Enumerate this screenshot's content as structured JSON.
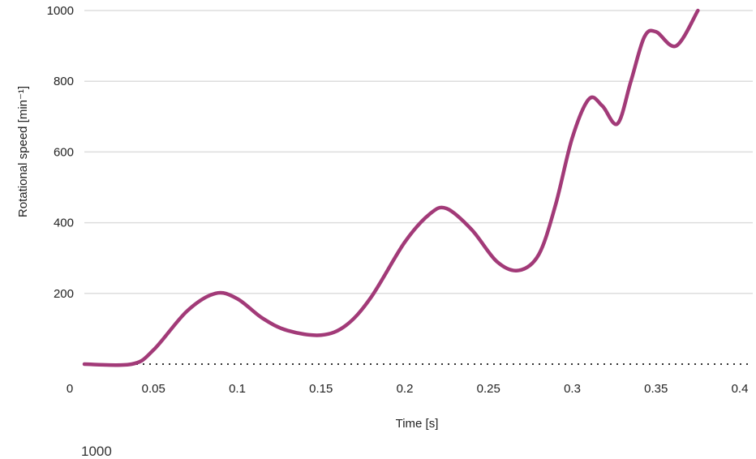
{
  "chart_data": {
    "type": "line",
    "xlabel": "Time [s]",
    "ylabel": "Rotational speed [min⁻¹]",
    "xlim": [
      0,
      0.4
    ],
    "ylim": [
      0,
      1000
    ],
    "x_ticks": [
      "0",
      "0.05",
      "0.1",
      "0.15",
      "0.2",
      "0.25",
      "0.3",
      "0.35",
      "0.4"
    ],
    "y_ticks": [
      "200",
      "400",
      "600",
      "800",
      "1000"
    ],
    "grid": "horizontal",
    "zero_line": "dotted",
    "series": [
      {
        "color": "#a23a78",
        "x": [
          0.0,
          0.037,
          0.05,
          0.07,
          0.087,
          0.1,
          0.115,
          0.13,
          0.15,
          0.165,
          0.18,
          0.2,
          0.215,
          0.225,
          0.24,
          0.255,
          0.268,
          0.28,
          0.29,
          0.3,
          0.31,
          0.318,
          0.327,
          0.335,
          0.343,
          0.35,
          0.362,
          0.375
        ],
        "y": [
          0,
          0,
          40,
          150,
          200,
          185,
          130,
          95,
          82,
          110,
          190,
          345,
          425,
          440,
          380,
          290,
          265,
          310,
          450,
          640,
          750,
          730,
          680,
          800,
          925,
          940,
          900,
          1000
        ]
      }
    ]
  },
  "clipped_text": "1000"
}
